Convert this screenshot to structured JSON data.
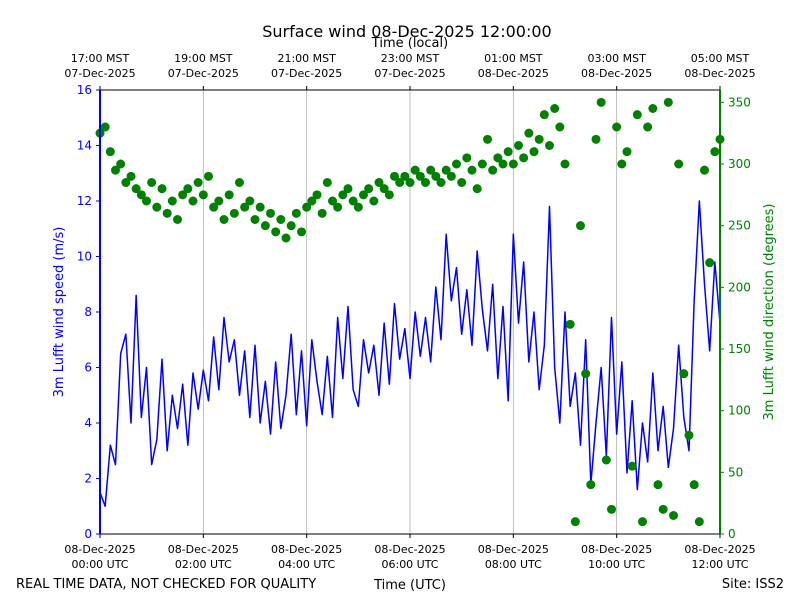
{
  "chart_data": {
    "type": "wind",
    "title": "Surface wind 08-Dec-2025 12:00:00",
    "x_label": "Time (UTC)",
    "x2_label": "Time (local)",
    "y_label": "3m Lufft wind speed (m/s)",
    "y2_label": "3m Lufft wind direction (degrees)",
    "footer_left": "REAL TIME DATA, NOT CHECKED FOR QUALITY",
    "footer_right": "Site: ISS2",
    "grid": true,
    "xlim": [
      0,
      12
    ],
    "xticks": [
      {
        "value": 0,
        "label": [
          "08-Dec-2025",
          "00:00 UTC"
        ]
      },
      {
        "value": 2,
        "label": [
          "08-Dec-2025",
          "02:00 UTC"
        ]
      },
      {
        "value": 4,
        "label": [
          "08-Dec-2025",
          "04:00 UTC"
        ]
      },
      {
        "value": 6,
        "label": [
          "08-Dec-2025",
          "06:00 UTC"
        ]
      },
      {
        "value": 8,
        "label": [
          "08-Dec-2025",
          "08:00 UTC"
        ]
      },
      {
        "value": 10,
        "label": [
          "08-Dec-2025",
          "10:00 UTC"
        ]
      },
      {
        "value": 12,
        "label": [
          "08-Dec-2025",
          "12:00 UTC"
        ]
      }
    ],
    "x2ticks": [
      {
        "value": 0,
        "label": [
          "17:00 MST",
          "07-Dec-2025"
        ]
      },
      {
        "value": 2,
        "label": [
          "19:00 MST",
          "07-Dec-2025"
        ]
      },
      {
        "value": 4,
        "label": [
          "21:00 MST",
          "07-Dec-2025"
        ]
      },
      {
        "value": 6,
        "label": [
          "23:00 MST",
          "07-Dec-2025"
        ]
      },
      {
        "value": 8,
        "label": [
          "01:00 MST",
          "08-Dec-2025"
        ]
      },
      {
        "value": 10,
        "label": [
          "03:00 MST",
          "08-Dec-2025"
        ]
      },
      {
        "value": 12,
        "label": [
          "05:00 MST",
          "08-Dec-2025"
        ]
      }
    ],
    "ylim": [
      0,
      16
    ],
    "yticks": [
      0,
      2,
      4,
      6,
      8,
      10,
      12,
      14,
      16
    ],
    "y2lim": [
      0,
      360
    ],
    "y2ticks": [
      0,
      50,
      100,
      150,
      200,
      250,
      300,
      350
    ],
    "x": [
      0,
      0.1,
      0.2,
      0.3,
      0.4,
      0.5,
      0.6,
      0.7,
      0.8,
      0.9,
      1,
      1.1,
      1.2,
      1.3,
      1.4,
      1.5,
      1.6,
      1.7,
      1.8,
      1.9,
      2,
      2.1,
      2.2,
      2.3,
      2.4,
      2.5,
      2.6,
      2.7,
      2.8,
      2.9,
      3,
      3.1,
      3.2,
      3.3,
      3.4,
      3.5,
      3.6,
      3.7,
      3.8,
      3.9,
      4,
      4.1,
      4.2,
      4.3,
      4.4,
      4.5,
      4.6,
      4.7,
      4.8,
      4.9,
      5,
      5.1,
      5.2,
      5.3,
      5.4,
      5.5,
      5.6,
      5.7,
      5.8,
      5.9,
      6,
      6.1,
      6.2,
      6.3,
      6.4,
      6.5,
      6.6,
      6.7,
      6.8,
      6.9,
      7,
      7.1,
      7.2,
      7.3,
      7.4,
      7.5,
      7.6,
      7.7,
      7.8,
      7.9,
      8,
      8.1,
      8.2,
      8.3,
      8.4,
      8.5,
      8.6,
      8.7,
      8.8,
      8.9,
      9,
      9.1,
      9.2,
      9.3,
      9.4,
      9.5,
      9.6,
      9.7,
      9.8,
      9.9,
      10,
      10.1,
      10.2,
      10.3,
      10.4,
      10.5,
      10.6,
      10.7,
      10.8,
      10.9,
      11,
      11.1,
      11.2,
      11.3,
      11.4,
      11.5,
      11.6,
      11.7,
      11.8,
      11.9,
      12
    ],
    "series": [
      {
        "name": "3m Lufft wind speed (m/s)",
        "color": "#0000ff",
        "style": "line",
        "values": [
          1.5,
          1.0,
          3.2,
          2.5,
          6.5,
          7.2,
          4.0,
          8.6,
          4.2,
          6.0,
          2.5,
          3.4,
          6.3,
          3.0,
          5.0,
          3.8,
          5.4,
          3.2,
          5.8,
          4.5,
          5.9,
          4.8,
          7.1,
          5.2,
          7.8,
          6.2,
          7.0,
          5.0,
          6.6,
          4.2,
          6.8,
          4.0,
          5.5,
          3.6,
          6.2,
          3.8,
          5.0,
          7.2,
          4.3,
          6.6,
          3.9,
          7.0,
          5.5,
          4.3,
          6.4,
          4.2,
          7.8,
          5.6,
          8.2,
          5.2,
          4.6,
          7.0,
          5.8,
          6.8,
          5.0,
          7.6,
          5.4,
          8.3,
          6.3,
          7.4,
          5.6,
          8.0,
          6.4,
          7.8,
          6.2,
          8.9,
          7.0,
          10.8,
          8.4,
          9.6,
          7.2,
          8.8,
          6.8,
          10.2,
          8.1,
          6.6,
          9.0,
          5.6,
          8.2,
          4.8,
          10.8,
          7.6,
          9.8,
          6.2,
          8.0,
          5.2,
          6.8,
          11.8,
          6.0,
          4.0,
          8.0,
          4.6,
          5.8,
          3.2,
          7.0,
          1.8,
          4.0,
          6.0,
          2.8,
          7.8,
          3.6,
          6.2,
          2.2,
          4.8,
          1.6,
          4.0,
          2.6,
          5.8,
          3.0,
          4.6,
          2.4,
          3.8,
          6.8,
          4.2,
          3.0,
          8.4,
          12.0,
          9.0,
          6.6,
          9.8,
          7.6
        ]
      },
      {
        "name": "3m Lufft wind direction (degrees)",
        "color": "#008000",
        "style": "scatter",
        "axis": "y2",
        "values": [
          325,
          330,
          310,
          295,
          300,
          285,
          290,
          280,
          275,
          270,
          285,
          265,
          280,
          260,
          270,
          255,
          275,
          280,
          270,
          285,
          275,
          290,
          265,
          270,
          255,
          275,
          260,
          285,
          265,
          270,
          255,
          265,
          250,
          260,
          245,
          255,
          240,
          250,
          260,
          245,
          265,
          270,
          275,
          260,
          285,
          270,
          265,
          275,
          280,
          270,
          265,
          275,
          280,
          270,
          285,
          280,
          275,
          290,
          285,
          290,
          285,
          295,
          290,
          285,
          295,
          290,
          285,
          295,
          290,
          300,
          285,
          305,
          295,
          280,
          300,
          320,
          295,
          305,
          300,
          310,
          300,
          315,
          305,
          325,
          310,
          320,
          340,
          315,
          345,
          330,
          300,
          170,
          10,
          250,
          130,
          40,
          320,
          350,
          60,
          20,
          330,
          300,
          310,
          55,
          340,
          10,
          330,
          345,
          40,
          20,
          350,
          15,
          300,
          130,
          80,
          40,
          10,
          295,
          220,
          310,
          320
        ]
      }
    ]
  }
}
